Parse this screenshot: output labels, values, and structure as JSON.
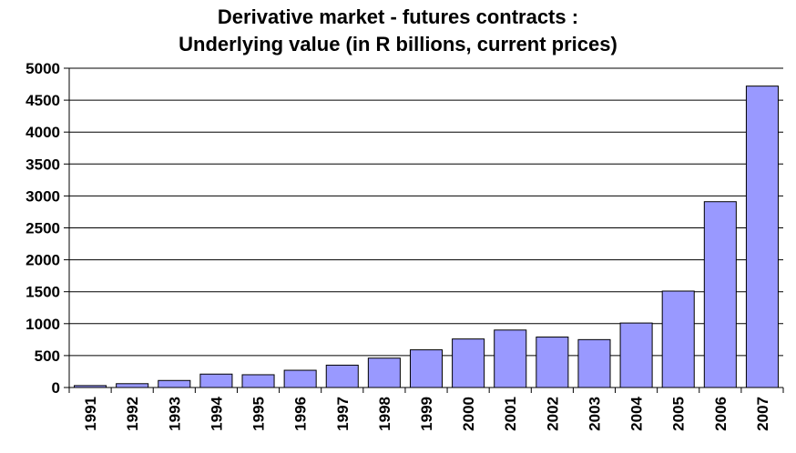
{
  "chart_data": {
    "type": "bar",
    "title_line1": "Derivative market - futures contracts :",
    "title_line2": "Underlying value (in R billions, current prices)",
    "xlabel": "",
    "ylabel": "",
    "categories": [
      "1991",
      "1992",
      "1993",
      "1994",
      "1995",
      "1996",
      "1997",
      "1998",
      "1999",
      "2000",
      "2001",
      "2002",
      "2003",
      "2004",
      "2005",
      "2006",
      "2007"
    ],
    "values": [
      30,
      60,
      110,
      210,
      200,
      270,
      350,
      460,
      590,
      760,
      900,
      790,
      750,
      1010,
      1510,
      2910,
      4720
    ],
    "ylim": [
      0,
      5000
    ],
    "yticks": [
      "0",
      "500",
      "1000",
      "1500",
      "2000",
      "2500",
      "3000",
      "3500",
      "4000",
      "4500",
      "5000"
    ],
    "grid": true,
    "legend": "none",
    "bar_color": "#9999ff"
  }
}
